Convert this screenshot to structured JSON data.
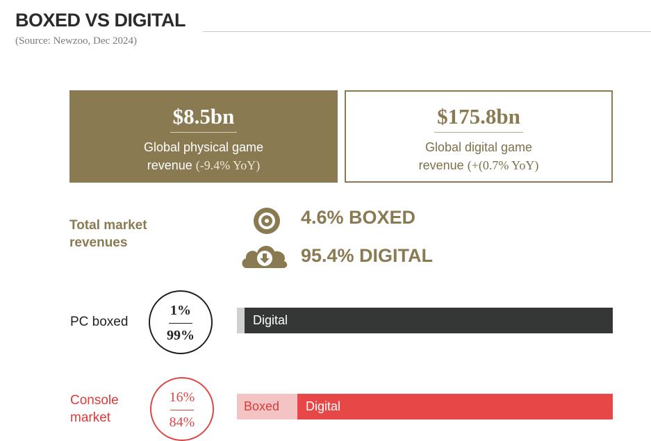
{
  "header": {
    "title": "BOXED VS DIGITAL",
    "source": "(Source: Newzoo, Dec 2024)"
  },
  "stats": {
    "physical": {
      "value": "$8.5bn",
      "desc_line1": "Global physical game",
      "desc_line2": "revenue",
      "yoy": "(-9.4% YoY)"
    },
    "digital": {
      "value": "$175.8bn",
      "desc_line1": "Global digital game",
      "desc_line2": "revenue",
      "yoy": "(+(0.7% YoY)"
    }
  },
  "total": {
    "label_line1": "Total market",
    "label_line2": "revenues",
    "boxed": "4.6% BOXED",
    "digital": "95.4% DIGITAL"
  },
  "chart_data": {
    "type": "bar",
    "stacked": true,
    "orientation": "horizontal",
    "categories": [
      "PC boxed",
      "Console market"
    ],
    "series": [
      {
        "name": "Boxed",
        "values": [
          1,
          16
        ]
      },
      {
        "name": "Digital",
        "values": [
          99,
          84
        ]
      }
    ],
    "pc": {
      "label": "PC boxed",
      "boxed_pct": "1%",
      "digital_pct": "99%",
      "boxed_label": "",
      "digital_label": "Digital"
    },
    "console": {
      "label_line1": "Console",
      "label_line2": "market",
      "boxed_pct": "16%",
      "digital_pct": "84%",
      "boxed_label": "Boxed",
      "digital_label": "Digital"
    }
  },
  "colors": {
    "gold": "#8a7a52",
    "pc_digital": "#353736",
    "pc_boxed": "#d0d0d0",
    "console_digital": "#e84747",
    "console_boxed": "#f4c4c4"
  },
  "icons": {
    "boxed": "disc-icon",
    "digital": "cloud-download-icon"
  }
}
